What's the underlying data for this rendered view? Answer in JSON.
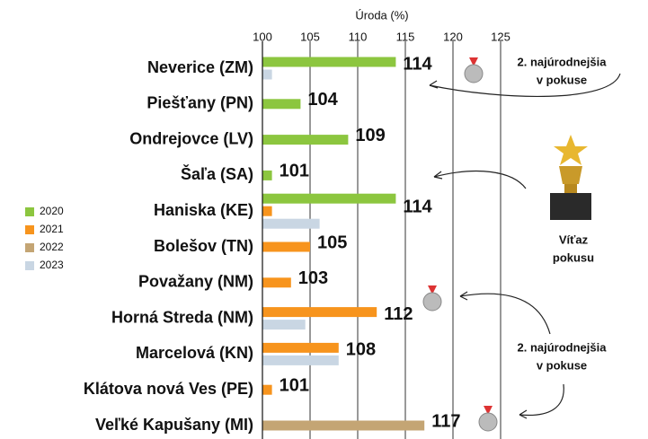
{
  "chart_data": {
    "type": "bar",
    "orientation": "horizontal",
    "x_label": "Úroda (%)",
    "categories": [
      "Neverice (ZM)",
      "Piešťany (PN)",
      "Ondrejovce (LV)",
      "Šaľa (SA)",
      "Haniska (KE)",
      "Bolešov (TN)",
      "Považany (NM)",
      "Horná Streda (NM)",
      "Marcelová (KN)",
      "Klátova nová Ves (PE)",
      "Veľké Kapušany (MI)"
    ],
    "series": [
      {
        "name": "2020",
        "color": "#8cc63f",
        "values": [
          114,
          104,
          109,
          101,
          114,
          null,
          null,
          null,
          null,
          null,
          null
        ]
      },
      {
        "name": "2021",
        "color": "#f7941d",
        "values": [
          null,
          null,
          null,
          null,
          101,
          105,
          103,
          112,
          108,
          101,
          null
        ]
      },
      {
        "name": "2022",
        "color": "#c4a574",
        "values": [
          null,
          null,
          null,
          null,
          null,
          null,
          null,
          null,
          null,
          null,
          117
        ]
      },
      {
        "name": "2023",
        "color": "#c9d6e3",
        "values": [
          101,
          null,
          null,
          null,
          106,
          null,
          null,
          104.5,
          108,
          null,
          null
        ]
      }
    ],
    "xlim": [
      100,
      130
    ],
    "xticks": [
      100,
      105,
      110,
      115,
      120,
      125
    ],
    "grid": true,
    "legend": "left",
    "annotations": [
      {
        "text": [
          "2. najúrodnejšia",
          "v pokuse"
        ]
      },
      {
        "text": [
          "Víťaz",
          "pokusu"
        ]
      },
      {
        "text": [
          "2. najúrodnejšia",
          "v pokuse"
        ]
      }
    ]
  }
}
